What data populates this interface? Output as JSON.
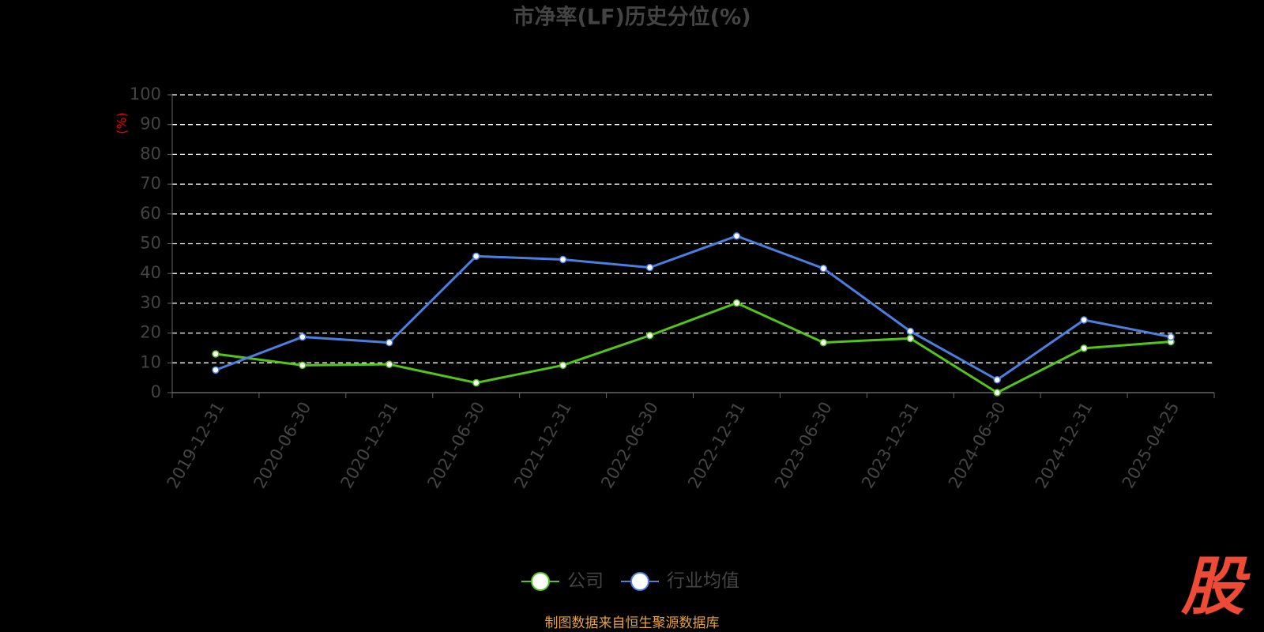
{
  "chart_data": {
    "type": "line",
    "title": "市净率(LF)历史分位(%)",
    "y_label": "(%)",
    "categories": [
      "2019-12-31",
      "2020-06-30",
      "2020-12-31",
      "2021-06-30",
      "2021-12-31",
      "2022-06-30",
      "2022-12-31",
      "2023-06-30",
      "2023-12-31",
      "2024-06-30",
      "2024-12-31",
      "2025-04-25"
    ],
    "series": [
      {
        "name": "公司",
        "color": "#52c41a",
        "values": [
          13.0,
          9.2,
          9.5,
          3.3,
          9.2,
          19.2,
          30.1,
          16.8,
          18.2,
          0,
          14.9,
          17.1
        ]
      },
      {
        "name": "行业均值",
        "color": "#4a7fe0",
        "values": [
          7.6,
          18.7,
          16.8,
          45.8,
          44.7,
          42.0,
          52.6,
          41.7,
          20.6,
          4.3,
          24.4,
          18.7
        ]
      }
    ],
    "ylim": [
      0,
      100
    ],
    "yticks": [
      0,
      10,
      20,
      30,
      40,
      50,
      60,
      70,
      80,
      90,
      100
    ],
    "grid": true,
    "source": "制图数据来自恒生聚源数据库",
    "logo": "股"
  }
}
